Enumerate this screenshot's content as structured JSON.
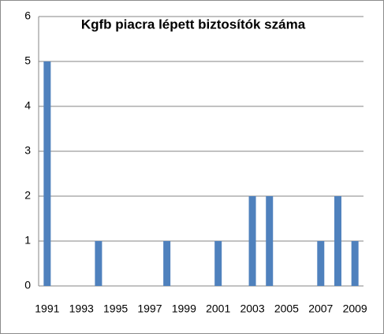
{
  "chart_data": {
    "type": "bar",
    "title": "Kgfb piacra lépett biztosítók száma",
    "categories": [
      "1991",
      null,
      "1993",
      null,
      "1995",
      null,
      "1997",
      null,
      "1999",
      null,
      "2001",
      null,
      "2003",
      null,
      "2005",
      null,
      "2007",
      null,
      "2009"
    ],
    "values": [
      5,
      0,
      0,
      1,
      0,
      0,
      0,
      1,
      0,
      0,
      1,
      0,
      2,
      2,
      0,
      0,
      1,
      2,
      1
    ],
    "color": "#4f81bd",
    "ylim": [
      0,
      6
    ],
    "yticks": [
      0,
      1,
      2,
      3,
      4,
      5,
      6
    ],
    "grid": true
  }
}
